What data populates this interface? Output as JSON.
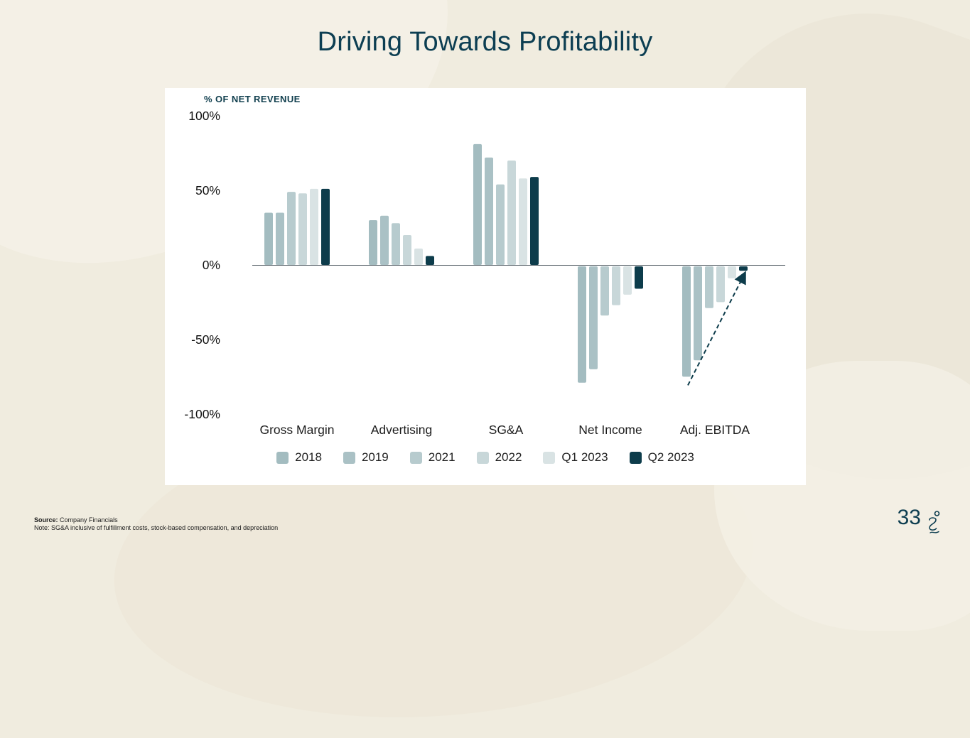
{
  "slide": {
    "title": "Driving Towards Profitability",
    "page_number": "33"
  },
  "colors": {
    "accent": "#0d3c4b",
    "title_text": "#0c3e52",
    "background": "#f0ecdf",
    "panel": "#ffffff"
  },
  "footer": {
    "source_label": "Source:",
    "source_text": "Company Financials",
    "note": "Note: SG&A inclusive of fulfillment costs, stock-based compensation, and depreciation"
  },
  "chart_data": {
    "type": "bar",
    "title": "% OF NET REVENUE",
    "categories": [
      "Gross Margin",
      "Advertising",
      "SG&A",
      "Net Income",
      "Adj. EBITDA"
    ],
    "series": [
      {
        "name": "2018",
        "color": "#a3bcc0",
        "values": [
          35,
          30,
          81,
          -78,
          -74
        ]
      },
      {
        "name": "2019",
        "color": "#aac1c5",
        "values": [
          35,
          33,
          72,
          -69,
          -63
        ]
      },
      {
        "name": "2021",
        "color": "#b7cbce",
        "values": [
          49,
          28,
          54,
          -33,
          -28
        ]
      },
      {
        "name": "2022",
        "color": "#c8d7d9",
        "values": [
          48,
          20,
          70,
          -26,
          -24
        ]
      },
      {
        "name": "Q1 2023",
        "color": "#d9e3e4",
        "values": [
          51,
          11,
          58,
          -19,
          -8
        ]
      },
      {
        "name": "Q2 2023",
        "color": "#0d3c4b",
        "values": [
          51,
          6,
          59,
          -15,
          -3
        ]
      }
    ],
    "y_axis": {
      "ticks": [
        "100%",
        "50%",
        "0%",
        "-50%",
        "-100%"
      ],
      "min": -100,
      "max": 100
    },
    "grid": false,
    "legend_position": "bottom",
    "annotations": [
      {
        "type": "dashed-up-arrow",
        "category": "Adj. EBITDA",
        "from_series": "2018",
        "to_series": "Q2 2023"
      }
    ]
  }
}
